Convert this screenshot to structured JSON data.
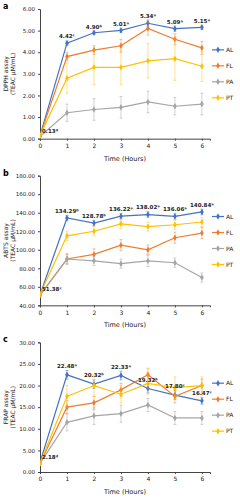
{
  "chart_data": [
    {
      "type": "line",
      "title": "a",
      "x_label": "Time (Hours)",
      "y_label": [
        "DPPH assay",
        "(TEAC µM/mL)"
      ],
      "x": [
        0,
        1,
        2,
        3,
        4,
        5,
        6
      ],
      "xlim": [
        0,
        6.3
      ],
      "xticks": [
        0,
        1,
        2,
        3,
        4,
        5,
        6
      ],
      "ylim": [
        0,
        6
      ],
      "yticks": [
        {
          "value": 0,
          "label": "0.00"
        },
        {
          "value": 1,
          "label": "1.00"
        },
        {
          "value": 2,
          "label": "2.00"
        },
        {
          "value": 3,
          "label": "3.00"
        },
        {
          "value": 4,
          "label": "4.00"
        },
        {
          "value": 5,
          "label": "5.00"
        },
        {
          "value": 6,
          "label": "6.00"
        }
      ],
      "grid": false,
      "legend": "right",
      "marker": "diamond",
      "series": [
        {
          "name": "AL",
          "color": "#4472c4",
          "values": [
            0.13,
            4.42,
            4.9,
            5.01,
            5.34,
            5.09,
            5.15
          ],
          "errors": [
            0.02,
            0.1,
            0.08,
            0.1,
            0.15,
            0.12,
            0.1
          ],
          "data_labels": true,
          "value_labels": [
            "0.13ᵈ",
            "4.42ᶜ",
            "4.90ᵇ",
            "5.01ᵃ",
            "5.34ᵃ",
            "5.09ᵃ",
            "5.15ᵃ"
          ]
        },
        {
          "name": "FL",
          "color": "#ed7d31",
          "values": [
            0.13,
            3.8,
            4.1,
            4.3,
            5.1,
            4.6,
            4.2
          ],
          "errors": [
            0.02,
            0.2,
            0.2,
            0.3,
            0.3,
            0.25,
            0.3
          ]
        },
        {
          "name": "PA",
          "color": "#a5a5a5",
          "values": [
            0.1,
            1.2,
            1.35,
            1.45,
            1.7,
            1.5,
            1.6
          ],
          "errors": [
            0.02,
            0.4,
            0.5,
            0.5,
            0.5,
            0.4,
            0.5
          ]
        },
        {
          "name": "PT",
          "color": "#ffc000",
          "values": [
            0.15,
            2.8,
            3.3,
            3.3,
            3.6,
            3.7,
            3.35
          ],
          "errors": [
            0.03,
            0.7,
            0.8,
            0.8,
            0.8,
            1.0,
            0.7
          ]
        }
      ]
    },
    {
      "type": "line",
      "title": "b",
      "x_label": "Time (Hours)",
      "y_label": [
        "ABTS assay",
        "(TEAC µM/mL)"
      ],
      "x": [
        0,
        1,
        2,
        3,
        4,
        5,
        6
      ],
      "xlim": [
        0,
        6.3
      ],
      "xticks": [
        0,
        1,
        2,
        3,
        4,
        5,
        6
      ],
      "ylim": [
        40,
        180
      ],
      "yticks": [
        {
          "value": 40,
          "label": "40.00"
        },
        {
          "value": 60,
          "label": "60.00"
        },
        {
          "value": 80,
          "label": "80.00"
        },
        {
          "value": 100,
          "label": "100.00"
        },
        {
          "value": 120,
          "label": "120.00"
        },
        {
          "value": 140,
          "label": "140.00"
        },
        {
          "value": 160,
          "label": "160.00"
        },
        {
          "value": 180,
          "label": "180.00"
        }
      ],
      "grid": false,
      "legend": "right",
      "marker": "diamond",
      "series": [
        {
          "name": "AL",
          "color": "#4472c4",
          "values": [
            51.38,
            134.29,
            128.78,
            136.22,
            138.02,
            136.06,
            140.84
          ],
          "errors": [
            1,
            3,
            3,
            3,
            3,
            3,
            3
          ],
          "data_labels": true,
          "value_labels": [
            "51.38ᶜ",
            "134.29ᵇ",
            "128.78ᵇ",
            "136.22ᵃ",
            "138.02ᵃ",
            "136.06ᵃ",
            "140.84ᵃ"
          ]
        },
        {
          "name": "FL",
          "color": "#ed7d31",
          "values": [
            51,
            90,
            95,
            105,
            100,
            113,
            118
          ],
          "errors": [
            1,
            5,
            6,
            6,
            5,
            6,
            6
          ]
        },
        {
          "name": "PA",
          "color": "#a5a5a5",
          "values": [
            51,
            90,
            88,
            85,
            88,
            86,
            70
          ],
          "errors": [
            1,
            6,
            5,
            5,
            6,
            5,
            5
          ]
        },
        {
          "name": "PT",
          "color": "#ffc000",
          "values": [
            52,
            115,
            120,
            128,
            125,
            127,
            130
          ],
          "errors": [
            1,
            5,
            5,
            5,
            5,
            5,
            5
          ]
        }
      ]
    },
    {
      "type": "line",
      "title": "c",
      "x_label": "Time (Hours)",
      "y_label": [
        "FRAP assay",
        "(TEAC µM/mL)"
      ],
      "x": [
        0,
        1,
        2,
        3,
        4,
        5,
        6
      ],
      "xlim": [
        0,
        6.3
      ],
      "xticks": [
        0,
        1,
        2,
        3,
        4,
        5,
        6
      ],
      "ylim": [
        0,
        30
      ],
      "yticks": [
        {
          "value": 0,
          "label": "0.00"
        },
        {
          "value": 5,
          "label": "5.00"
        },
        {
          "value": 10,
          "label": "10.00"
        },
        {
          "value": 15,
          "label": "15.00"
        },
        {
          "value": 20,
          "label": "20.00"
        },
        {
          "value": 25,
          "label": "25.00"
        },
        {
          "value": 30,
          "label": "30.00"
        }
      ],
      "grid": false,
      "legend": "right",
      "marker": "diamond",
      "series": [
        {
          "name": "AL",
          "color": "#4472c4",
          "values": [
            2.18,
            22.48,
            20.32,
            22.33,
            19.32,
            17.8,
            16.47
          ],
          "errors": [
            0.2,
            1,
            1,
            1,
            1,
            1,
            0.8
          ],
          "data_labels": true,
          "value_labels": [
            "2.18ᵈ",
            "22.48ᵃ",
            "20.32ᵇ",
            "22.33ᵃ",
            "19.32ᵇ",
            "17.80ᶜ",
            "16.47ᶜ"
          ]
        },
        {
          "name": "FL",
          "color": "#ed7d31",
          "values": [
            2,
            15,
            16,
            19,
            22.5,
            17.5,
            20
          ],
          "errors": [
            0.2,
            1.5,
            1.5,
            1.5,
            1.5,
            1.5,
            1.5
          ]
        },
        {
          "name": "PA",
          "color": "#a5a5a5",
          "values": [
            2,
            11.5,
            13,
            13.5,
            15.5,
            12.5,
            12.5
          ],
          "errors": [
            0.2,
            2,
            2,
            2,
            1.5,
            1.5,
            1.5
          ]
        },
        {
          "name": "PT",
          "color": "#ffc000",
          "values": [
            2,
            17.5,
            20,
            18,
            20.5,
            19.5,
            20
          ],
          "errors": [
            0.2,
            2.5,
            2.5,
            2,
            2.5,
            2.5,
            2
          ]
        }
      ]
    }
  ]
}
